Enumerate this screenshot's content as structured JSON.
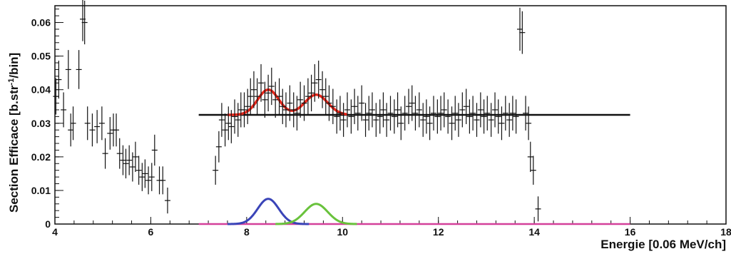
{
  "chart_data": {
    "type": "scatter",
    "xlabel": "Energie [0.06 MeV/ch]",
    "ylabel_main": "Section Efficace [b.str",
    "ylabel_sup": "-1",
    "ylabel_end": "/bin]",
    "xlim": [
      4,
      18
    ],
    "ylim": [
      0,
      0.065
    ],
    "x_ticks": [
      4,
      6,
      8,
      10,
      12,
      14,
      16,
      18
    ],
    "x_tick_labels": [
      "4",
      "6",
      "8",
      "10",
      "12",
      "14",
      "16",
      "18"
    ],
    "y_ticks": [
      0,
      0.01,
      0.02,
      0.03,
      0.04,
      0.05,
      0.06
    ],
    "y_tick_labels": [
      "0",
      "0.01",
      "0.02",
      "0.03",
      "0.04",
      "0.05",
      "0.06"
    ],
    "grid": false,
    "colors": {
      "data": "#111111",
      "flat_fit": "#111111",
      "sum_fit": "#e8271b",
      "peak1": "#3a44b8",
      "peak2": "#69c23c",
      "baseline": "#d4409a"
    },
    "data_points": [
      [
        4.02,
        0.038
      ],
      [
        4.08,
        0.043
      ],
      [
        4.18,
        0.034
      ],
      [
        4.28,
        0.046
      ],
      [
        4.33,
        0.028
      ],
      [
        4.38,
        0.03
      ],
      [
        4.5,
        0.046
      ],
      [
        4.58,
        0.061
      ],
      [
        4.62,
        0.06
      ],
      [
        4.68,
        0.03
      ],
      [
        4.78,
        0.028
      ],
      [
        4.88,
        0.029
      ],
      [
        4.98,
        0.03
      ],
      [
        5.05,
        0.021
      ],
      [
        5.15,
        0.027
      ],
      [
        5.22,
        0.028
      ],
      [
        5.28,
        0.028
      ],
      [
        5.35,
        0.021
      ],
      [
        5.42,
        0.019
      ],
      [
        5.48,
        0.018
      ],
      [
        5.55,
        0.019
      ],
      [
        5.62,
        0.017
      ],
      [
        5.68,
        0.02
      ],
      [
        5.75,
        0.016
      ],
      [
        5.82,
        0.014
      ],
      [
        5.88,
        0.015
      ],
      [
        5.95,
        0.013
      ],
      [
        6.02,
        0.014
      ],
      [
        6.08,
        0.022
      ],
      [
        6.18,
        0.013
      ],
      [
        6.25,
        0.013
      ],
      [
        6.35,
        0.007
      ],
      [
        7.35,
        0.016
      ],
      [
        7.42,
        0.023
      ],
      [
        7.48,
        0.031
      ],
      [
        7.55,
        0.028
      ],
      [
        7.62,
        0.03
      ],
      [
        7.68,
        0.029
      ],
      [
        7.75,
        0.032
      ],
      [
        7.82,
        0.031
      ],
      [
        7.88,
        0.034
      ],
      [
        7.95,
        0.034
      ],
      [
        8.02,
        0.035
      ],
      [
        8.08,
        0.038
      ],
      [
        8.15,
        0.04
      ],
      [
        8.22,
        0.038
      ],
      [
        8.3,
        0.042
      ],
      [
        8.38,
        0.037
      ],
      [
        8.45,
        0.039
      ],
      [
        8.52,
        0.041
      ],
      [
        8.6,
        0.037
      ],
      [
        8.68,
        0.038
      ],
      [
        8.75,
        0.035
      ],
      [
        8.82,
        0.034
      ],
      [
        8.9,
        0.036
      ],
      [
        8.98,
        0.034
      ],
      [
        9.05,
        0.033
      ],
      [
        9.12,
        0.037
      ],
      [
        9.2,
        0.036
      ],
      [
        9.28,
        0.038
      ],
      [
        9.35,
        0.039
      ],
      [
        9.42,
        0.042
      ],
      [
        9.5,
        0.043
      ],
      [
        9.58,
        0.04
      ],
      [
        9.65,
        0.038
      ],
      [
        9.72,
        0.036
      ],
      [
        9.8,
        0.035
      ],
      [
        9.88,
        0.032
      ],
      [
        9.95,
        0.033
      ],
      [
        10.02,
        0.031
      ],
      [
        10.1,
        0.034
      ],
      [
        10.18,
        0.032
      ],
      [
        10.25,
        0.035
      ],
      [
        10.32,
        0.033
      ],
      [
        10.4,
        0.036
      ],
      [
        10.48,
        0.031
      ],
      [
        10.55,
        0.033
      ],
      [
        10.62,
        0.034
      ],
      [
        10.7,
        0.031
      ],
      [
        10.78,
        0.032
      ],
      [
        10.85,
        0.034
      ],
      [
        10.92,
        0.031
      ],
      [
        11.0,
        0.033
      ],
      [
        11.08,
        0.032
      ],
      [
        11.15,
        0.034
      ],
      [
        11.22,
        0.03
      ],
      [
        11.3,
        0.033
      ],
      [
        11.38,
        0.035
      ],
      [
        11.45,
        0.036
      ],
      [
        11.52,
        0.033
      ],
      [
        11.6,
        0.034
      ],
      [
        11.68,
        0.031
      ],
      [
        11.75,
        0.032
      ],
      [
        11.82,
        0.03
      ],
      [
        11.9,
        0.033
      ],
      [
        11.98,
        0.032
      ],
      [
        12.05,
        0.033
      ],
      [
        12.12,
        0.034
      ],
      [
        12.2,
        0.032
      ],
      [
        12.28,
        0.03
      ],
      [
        12.35,
        0.033
      ],
      [
        12.42,
        0.031
      ],
      [
        12.5,
        0.034
      ],
      [
        12.58,
        0.035
      ],
      [
        12.65,
        0.032
      ],
      [
        12.72,
        0.033
      ],
      [
        12.8,
        0.031
      ],
      [
        12.88,
        0.034
      ],
      [
        12.95,
        0.032
      ],
      [
        13.02,
        0.033
      ],
      [
        13.1,
        0.031
      ],
      [
        13.18,
        0.034
      ],
      [
        13.25,
        0.032
      ],
      [
        13.32,
        0.03
      ],
      [
        13.4,
        0.033
      ],
      [
        13.48,
        0.031
      ],
      [
        13.55,
        0.033
      ],
      [
        13.62,
        0.032
      ],
      [
        13.7,
        0.058
      ],
      [
        13.75,
        0.057
      ],
      [
        13.82,
        0.033
      ],
      [
        13.88,
        0.03
      ],
      [
        13.92,
        0.02
      ],
      [
        13.98,
        0.016
      ],
      [
        14.08,
        0.0045
      ]
    ],
    "flat_fit": {
      "x": [
        7.0,
        16.0
      ],
      "y": 0.0325
    },
    "sum_fit": {
      "x": [
        7.6,
        10.1
      ],
      "baseline": 0.0325,
      "peaks": [
        {
          "mean": 8.45,
          "sigma": 0.22,
          "amp": 0.0075
        },
        {
          "mean": 9.45,
          "sigma": 0.24,
          "amp": 0.006
        }
      ]
    },
    "peak_fits": [
      {
        "mean": 8.45,
        "sigma": 0.22,
        "amp": 0.0075,
        "range": [
          7.6,
          9.3
        ]
      },
      {
        "mean": 9.45,
        "sigma": 0.24,
        "amp": 0.006,
        "range": [
          8.6,
          10.3
        ]
      }
    ],
    "baseline_fit": {
      "x": [
        7.0,
        16.0
      ],
      "y": 0
    }
  }
}
